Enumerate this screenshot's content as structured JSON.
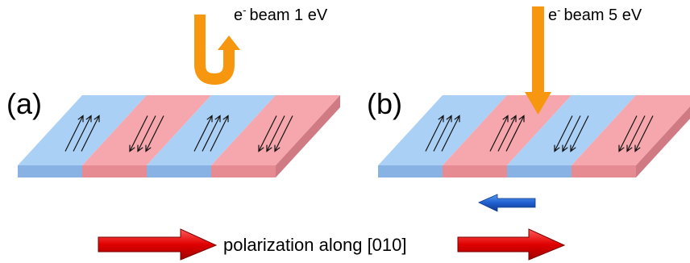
{
  "panels": [
    {
      "id": "a",
      "label": "(a)",
      "beam": {
        "prefix": "e",
        "superscript": "-",
        "text": "beam 1 eV",
        "style": "u-turn-reflected"
      },
      "stripes": [
        {
          "material": "blue",
          "arrow_dir": "up"
        },
        {
          "material": "red",
          "arrow_dir": "down"
        },
        {
          "material": "blue",
          "arrow_dir": "up"
        },
        {
          "material": "red",
          "arrow_dir": "down"
        }
      ]
    },
    {
      "id": "b",
      "label": "(b)",
      "beam": {
        "prefix": "e",
        "superscript": "-",
        "text": "beam 5 eV",
        "style": "straight-down"
      },
      "stripes": [
        {
          "material": "blue",
          "arrow_dir": "up"
        },
        {
          "material": "red",
          "arrow_dir": "up"
        },
        {
          "material": "blue",
          "arrow_dir": "down"
        },
        {
          "material": "red",
          "arrow_dir": "down"
        }
      ],
      "indicator": {
        "direction": "left",
        "color": "#1f5fd0"
      }
    }
  ],
  "polarization": {
    "text": "polarization along [010]",
    "arrow_color": "#e00000"
  },
  "colors": {
    "blue_top": "#abd0f5",
    "blue_front": "#88b2e4",
    "blue_side": "#7aa0d4",
    "red_top": "#f6a7ad",
    "red_front": "#e78b92",
    "red_side": "#d07a83",
    "beam": "#f7960f"
  }
}
